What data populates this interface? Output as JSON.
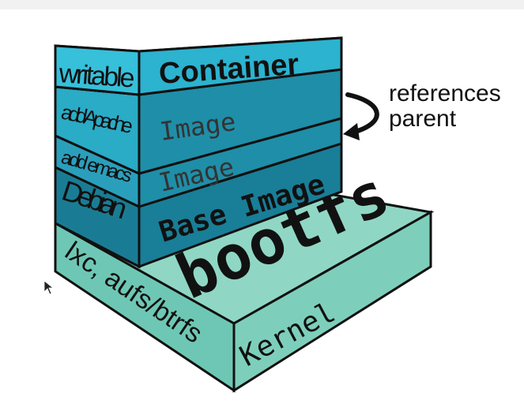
{
  "layers": {
    "container": {
      "side_label": "writable",
      "front_label": "Container"
    },
    "image_apache": {
      "side_label": "add Apache",
      "front_label": "Image"
    },
    "image_emacs": {
      "side_label": "add emacs",
      "front_label": "Image"
    },
    "base": {
      "side_label": "Debian",
      "front_label": "Base Image"
    },
    "bootfs": {
      "top_label": "bootfs"
    },
    "kernel": {
      "side_label": "lxc, aufs/btrfs",
      "front_label": "Kernel"
    }
  },
  "annotation": {
    "line1": "references",
    "line2": "parent"
  },
  "colors": {
    "page_bg": "#ffffff",
    "outline": "#111111",
    "container_face": "#2bb3cf",
    "container_top": "#5fd3e6",
    "image_face": "#1f8ea8",
    "base_face": "#197e97",
    "kernel_top": "#8fd7c4",
    "kernel_face": "#6ec7b4"
  },
  "icons": [
    "curved-arrow-icon",
    "mouse-pointer-icon"
  ]
}
